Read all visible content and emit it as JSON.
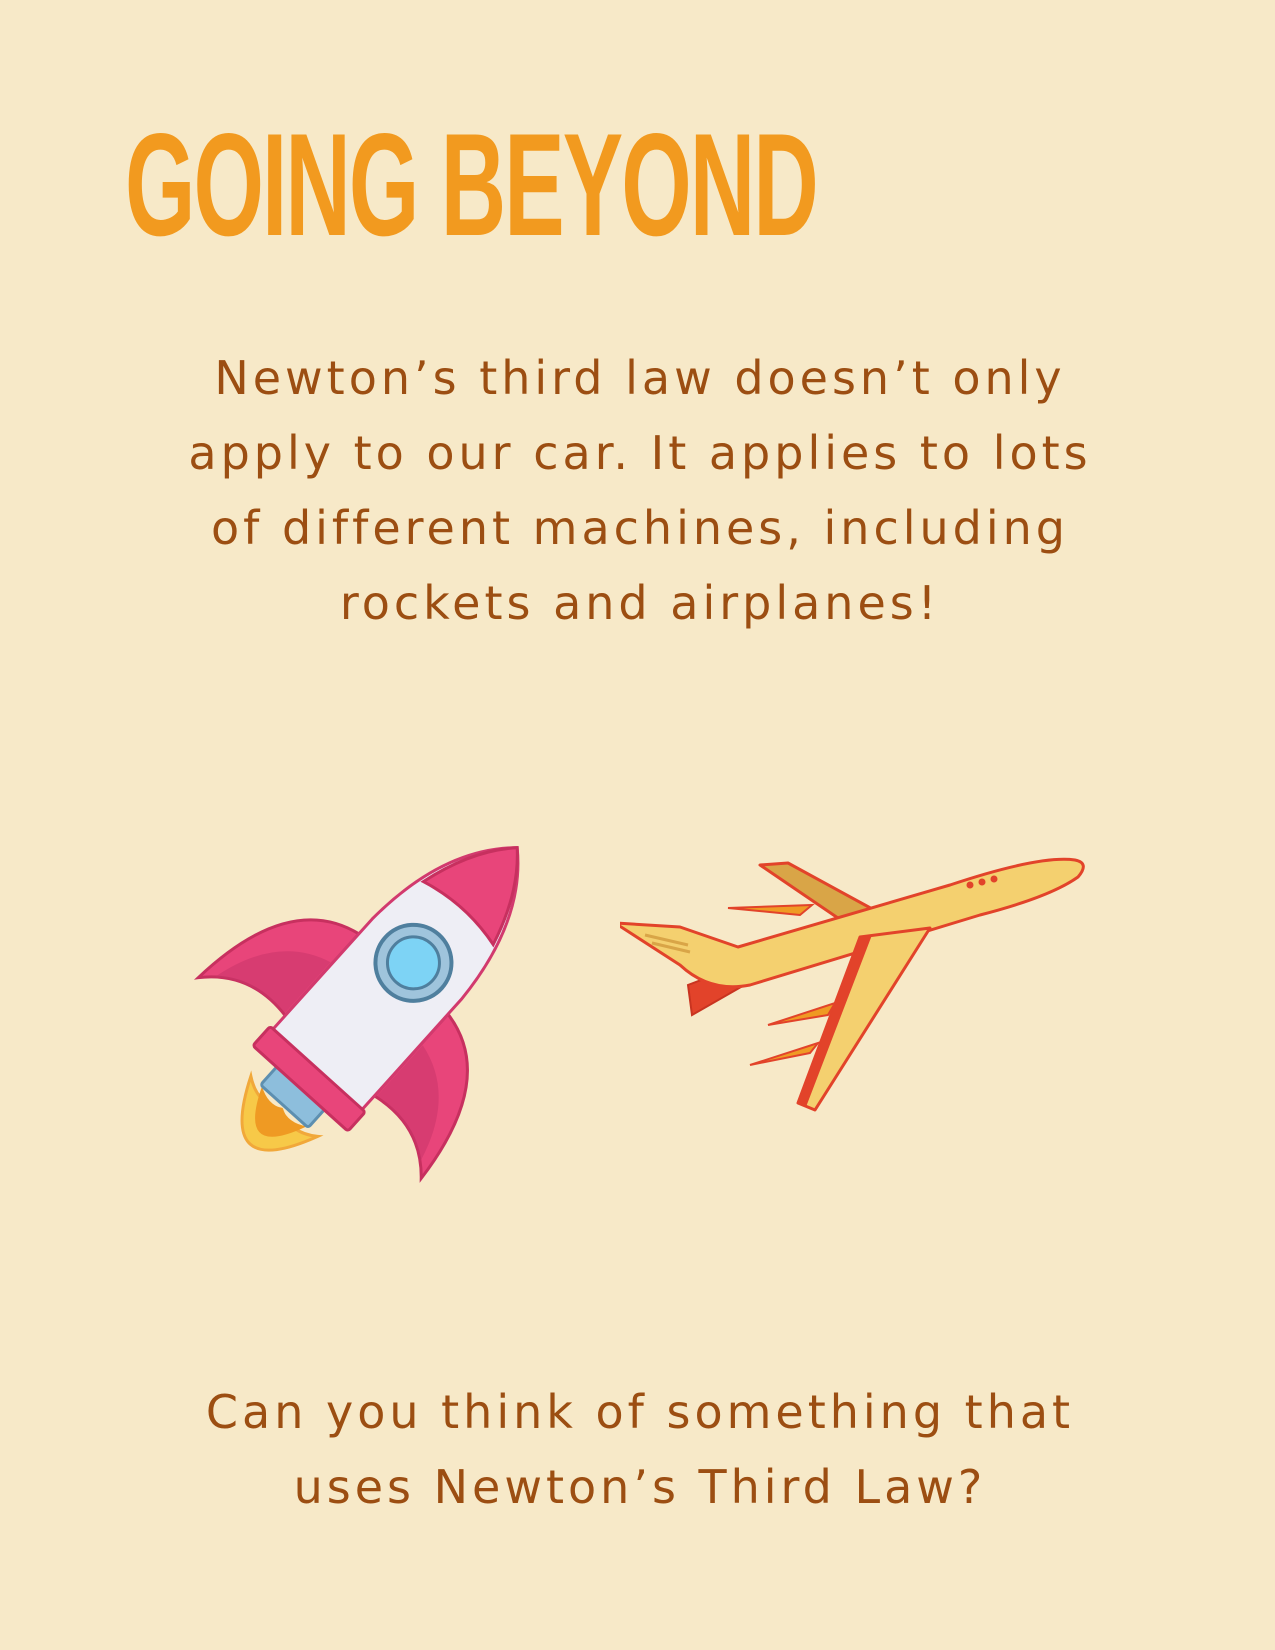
{
  "title": "GOING BEYOND",
  "intro": {
    "lines": [
      "Newton’s third law doesn’t only",
      "apply to our car. It applies to lots",
      "of different machines, including",
      "rockets and airplanes!"
    ]
  },
  "question": {
    "lines": [
      "Can you think of something that",
      "uses Newton’s Third Law?"
    ]
  },
  "illustrations": {
    "rocket": "rocket-icon",
    "airplane": "airplane-icon"
  },
  "colors": {
    "background": "#f7e9c8",
    "title": "#f29a1f",
    "body_text": "#9c4e12",
    "rocket_pink": "#e8457a",
    "rocket_body": "#eeeef5",
    "rocket_window": "#7dd3f5",
    "flame_orange": "#ef9a23",
    "flame_yellow": "#f7c948",
    "plane_body": "#f4d06f",
    "plane_wing": "#d9a547",
    "plane_red": "#e2432a"
  }
}
